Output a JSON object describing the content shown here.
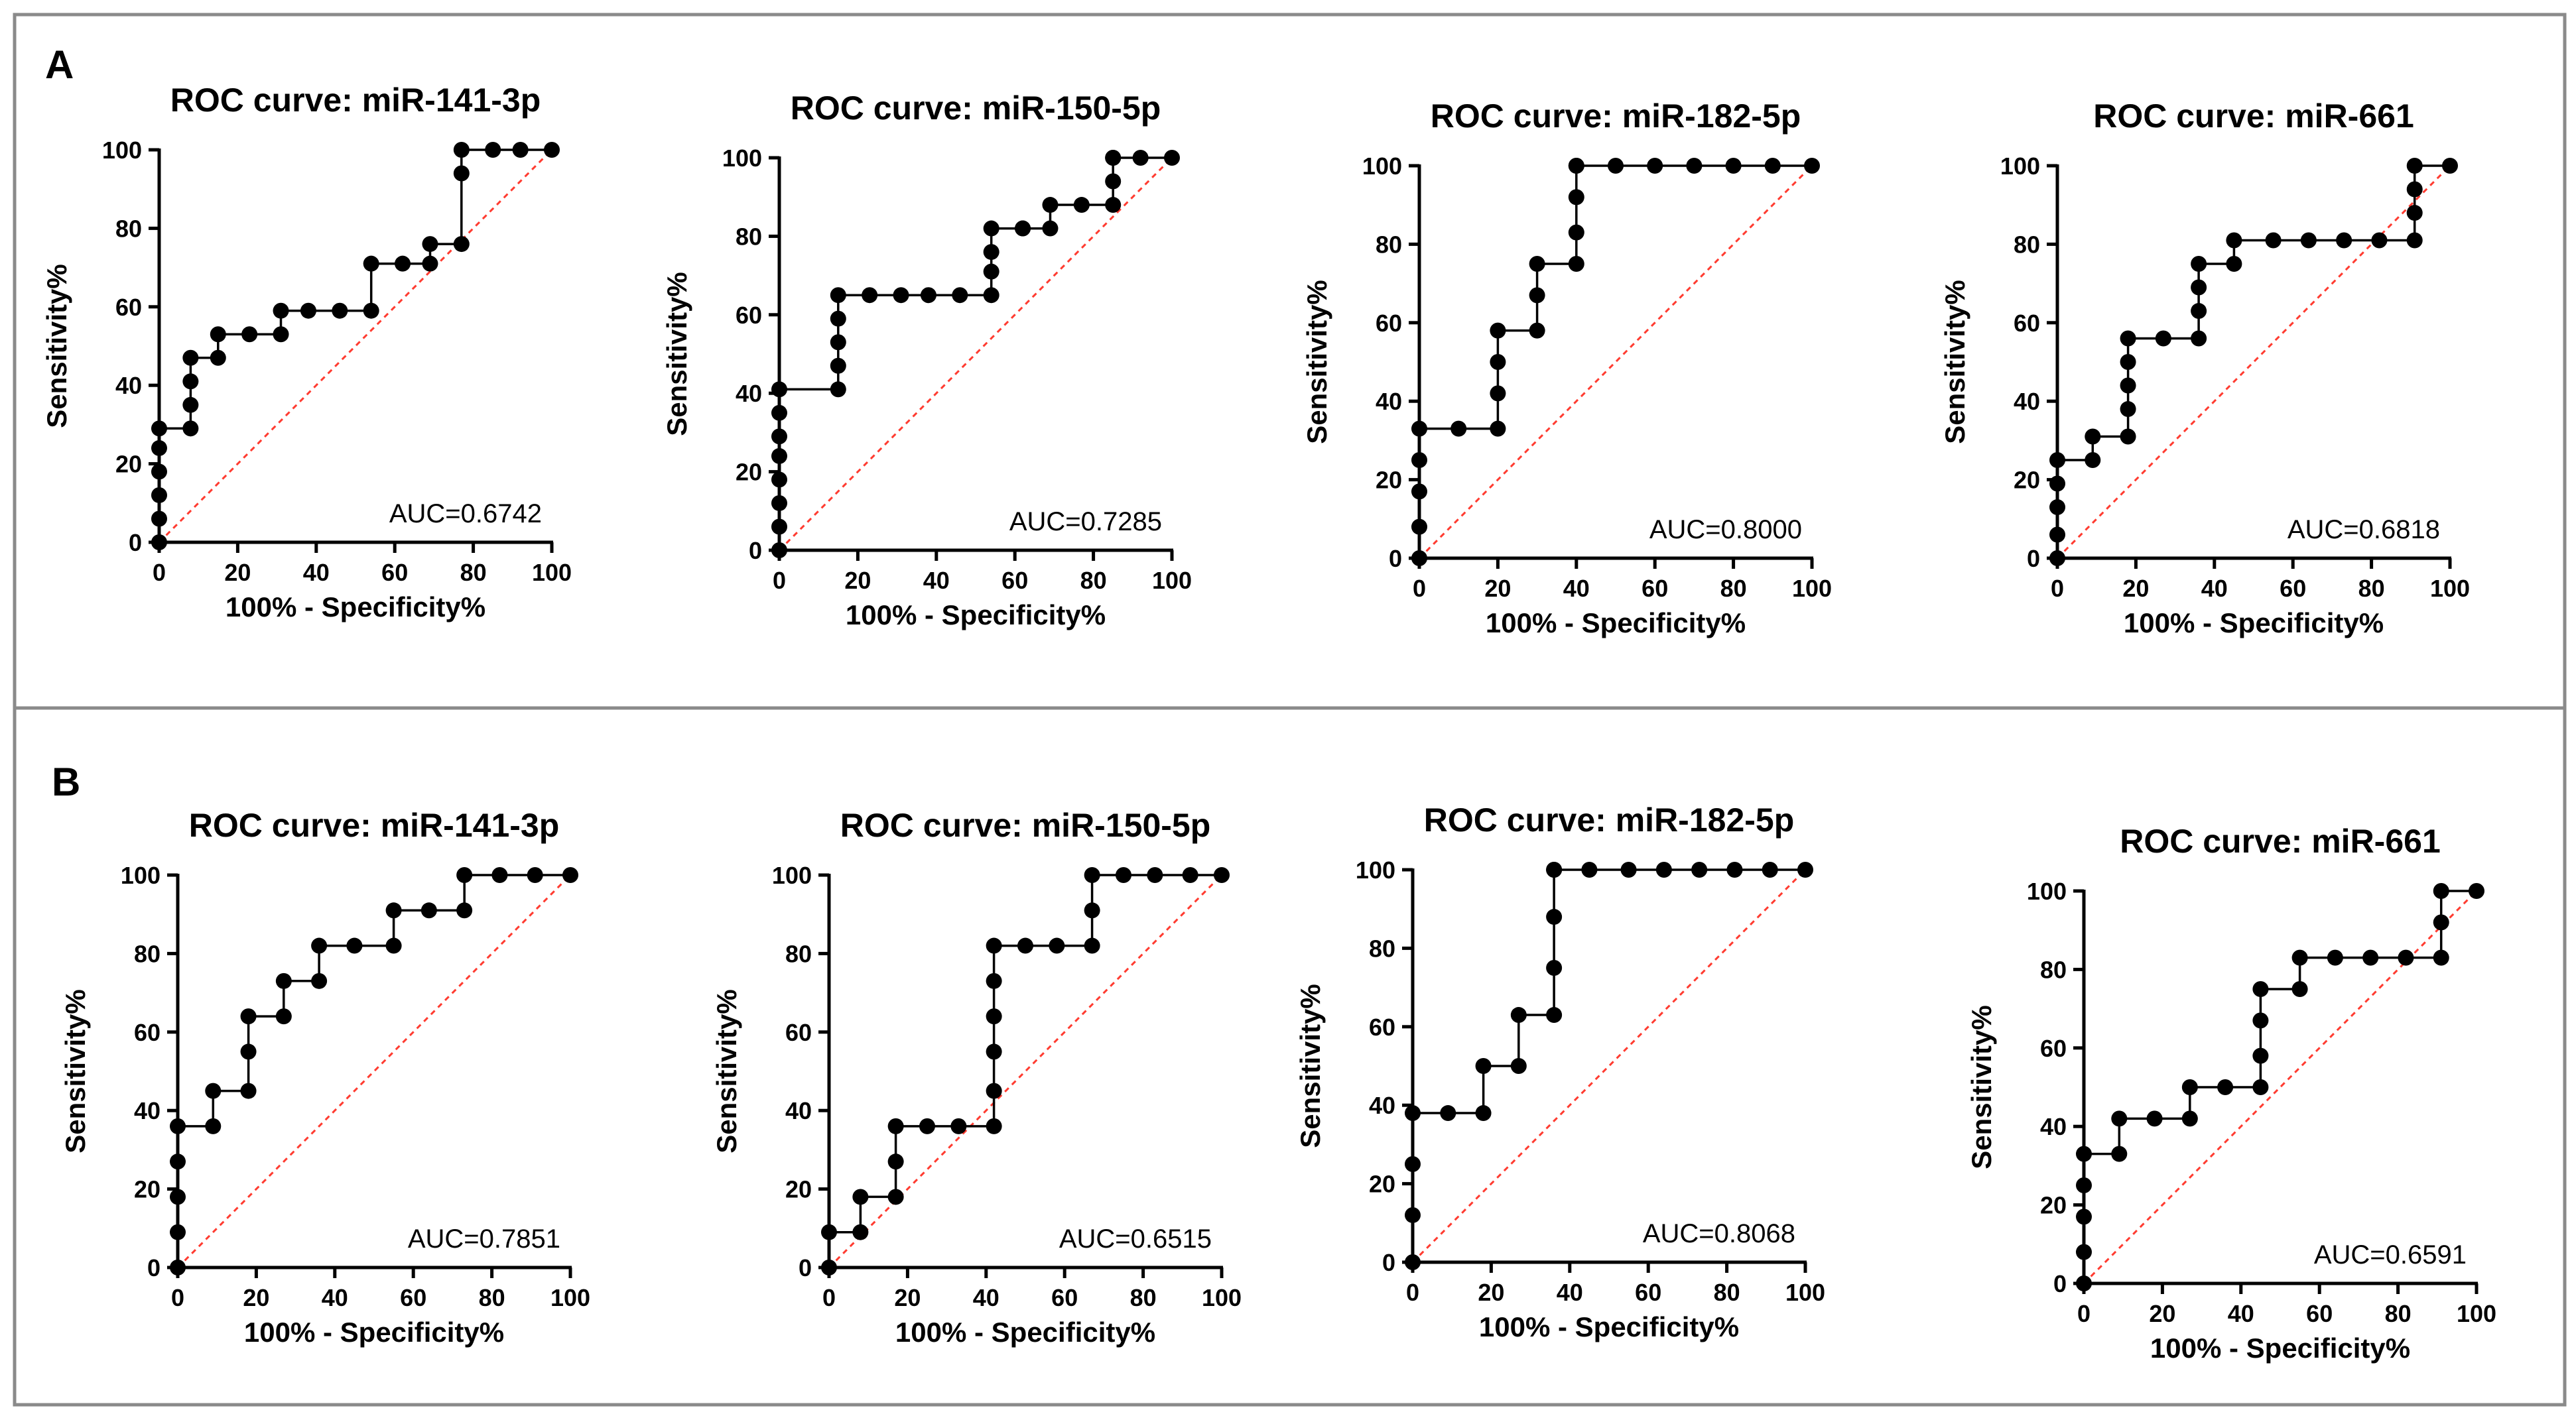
{
  "figure": {
    "panels": [
      {
        "letter": "A",
        "charts": [
          0,
          1,
          2,
          3
        ]
      },
      {
        "letter": "B",
        "charts": [
          4,
          5,
          6,
          7
        ]
      }
    ]
  },
  "chart_data": [
    {
      "type": "line",
      "panel": "A",
      "title": "ROC curve: miR-141-3p",
      "xlabel": "100% - Specificity%",
      "ylabel": "Sensitivity%",
      "xlim": [
        0,
        100
      ],
      "ylim": [
        0,
        100
      ],
      "xticks": [
        "0",
        "20",
        "40",
        "60",
        "80",
        "100"
      ],
      "yticks": [
        "0",
        "20",
        "40",
        "60",
        "80",
        "100"
      ],
      "auc_label": "AUC=0.6742",
      "series": [
        {
          "name": "ROC",
          "x": [
            0,
            0,
            0,
            0,
            0,
            0,
            8,
            8,
            8,
            8,
            15,
            15,
            23,
            31,
            31,
            38,
            46,
            54,
            54,
            62,
            69,
            69,
            77,
            77,
            77,
            85,
            92,
            100
          ],
          "y": [
            0,
            6,
            12,
            18,
            24,
            29,
            29,
            35,
            41,
            47,
            47,
            53,
            53,
            53,
            59,
            59,
            59,
            59,
            71,
            71,
            71,
            76,
            76,
            94,
            100,
            100,
            100,
            100
          ]
        }
      ],
      "reference_line": {
        "x": [
          0,
          100
        ],
        "y": [
          0,
          100
        ]
      }
    },
    {
      "type": "line",
      "panel": "A",
      "title": "ROC curve: miR-150-5p",
      "xlabel": "100% - Specificity%",
      "ylabel": "Sensitivity%",
      "xlim": [
        0,
        100
      ],
      "ylim": [
        0,
        100
      ],
      "xticks": [
        "0",
        "20",
        "40",
        "60",
        "80",
        "100"
      ],
      "yticks": [
        "0",
        "20",
        "40",
        "60",
        "80",
        "100"
      ],
      "auc_label": "AUC=0.7285",
      "series": [
        {
          "name": "ROC",
          "x": [
            0,
            0,
            0,
            0,
            0,
            0,
            0,
            0,
            15,
            15,
            15,
            15,
            15,
            23,
            31,
            38,
            46,
            54,
            54,
            54,
            54,
            62,
            62,
            69,
            69,
            77,
            85,
            85,
            85,
            85,
            92,
            100
          ],
          "y": [
            0,
            6,
            12,
            18,
            24,
            29,
            35,
            41,
            41,
            47,
            53,
            59,
            65,
            65,
            65,
            65,
            65,
            65,
            71,
            76,
            82,
            82,
            82,
            82,
            88,
            88,
            88,
            94,
            100,
            100,
            100,
            100
          ]
        }
      ],
      "reference_line": {
        "x": [
          0,
          100
        ],
        "y": [
          0,
          100
        ]
      }
    },
    {
      "type": "line",
      "panel": "A",
      "title": "ROC curve: miR-182-5p",
      "xlabel": "100% - Specificity%",
      "ylabel": "Sensitivity%",
      "xlim": [
        0,
        100
      ],
      "ylim": [
        0,
        100
      ],
      "xticks": [
        "0",
        "20",
        "40",
        "60",
        "80",
        "100"
      ],
      "yticks": [
        "0",
        "20",
        "40",
        "60",
        "80",
        "100"
      ],
      "auc_label": "AUC=0.8000",
      "series": [
        {
          "name": "ROC",
          "x": [
            0,
            0,
            0,
            0,
            0,
            10,
            20,
            20,
            20,
            20,
            30,
            30,
            30,
            40,
            40,
            40,
            40,
            40,
            50,
            60,
            70,
            80,
            90,
            100
          ],
          "y": [
            0,
            8,
            17,
            25,
            33,
            33,
            33,
            42,
            50,
            58,
            58,
            67,
            75,
            75,
            83,
            92,
            100,
            100,
            100,
            100,
            100,
            100,
            100,
            100
          ]
        }
      ],
      "reference_line": {
        "x": [
          0,
          100
        ],
        "y": [
          0,
          100
        ]
      }
    },
    {
      "type": "line",
      "panel": "A",
      "title": "ROC curve: miR-661",
      "xlabel": "100% - Specificity%",
      "ylabel": "Sensitivity%",
      "xlim": [
        0,
        100
      ],
      "ylim": [
        0,
        100
      ],
      "xticks": [
        "0",
        "20",
        "40",
        "60",
        "80",
        "100"
      ],
      "yticks": [
        "0",
        "20",
        "40",
        "60",
        "80",
        "100"
      ],
      "auc_label": "AUC=0.6818",
      "series": [
        {
          "name": "ROC",
          "x": [
            0,
            0,
            0,
            0,
            0,
            9,
            9,
            18,
            18,
            18,
            18,
            18,
            27,
            36,
            36,
            36,
            36,
            45,
            45,
            55,
            64,
            73,
            82,
            91,
            91,
            91,
            91,
            100
          ],
          "y": [
            0,
            6,
            13,
            19,
            25,
            25,
            31,
            31,
            38,
            44,
            50,
            56,
            56,
            56,
            63,
            69,
            75,
            75,
            81,
            81,
            81,
            81,
            81,
            81,
            88,
            94,
            100,
            100
          ]
        }
      ],
      "reference_line": {
        "x": [
          0,
          100
        ],
        "y": [
          0,
          100
        ]
      }
    },
    {
      "type": "line",
      "panel": "B",
      "title": "ROC curve: miR-141-3p",
      "xlabel": "100% - Specificity%",
      "ylabel": "Sensitivity%",
      "xlim": [
        0,
        100
      ],
      "ylim": [
        0,
        100
      ],
      "xticks": [
        "0",
        "20",
        "40",
        "60",
        "80",
        "100"
      ],
      "yticks": [
        "0",
        "20",
        "40",
        "60",
        "80",
        "100"
      ],
      "auc_label": "AUC=0.7851",
      "series": [
        {
          "name": "ROC",
          "x": [
            0,
            0,
            0,
            0,
            0,
            9,
            9,
            18,
            18,
            18,
            27,
            27,
            36,
            36,
            45,
            55,
            55,
            64,
            73,
            73,
            82,
            91,
            100
          ],
          "y": [
            0,
            9,
            18,
            27,
            36,
            36,
            45,
            45,
            55,
            64,
            64,
            73,
            73,
            82,
            82,
            82,
            91,
            91,
            91,
            100,
            100,
            100,
            100
          ]
        }
      ],
      "reference_line": {
        "x": [
          0,
          100
        ],
        "y": [
          0,
          100
        ]
      }
    },
    {
      "type": "line",
      "panel": "B",
      "title": "ROC curve: miR-150-5p",
      "xlabel": "100% - Specificity%",
      "ylabel": "Sensitivity%",
      "xlim": [
        0,
        100
      ],
      "ylim": [
        0,
        100
      ],
      "xticks": [
        "0",
        "20",
        "40",
        "60",
        "80",
        "100"
      ],
      "yticks": [
        "0",
        "20",
        "40",
        "60",
        "80",
        "100"
      ],
      "auc_label": "AUC=0.6515",
      "series": [
        {
          "name": "ROC",
          "x": [
            0,
            0,
            8,
            8,
            17,
            17,
            17,
            25,
            33,
            42,
            42,
            42,
            42,
            42,
            42,
            50,
            58,
            67,
            67,
            67,
            75,
            83,
            92,
            100
          ],
          "y": [
            0,
            9,
            9,
            18,
            18,
            27,
            36,
            36,
            36,
            36,
            45,
            55,
            64,
            73,
            82,
            82,
            82,
            82,
            91,
            100,
            100,
            100,
            100,
            100
          ]
        }
      ],
      "reference_line": {
        "x": [
          0,
          100
        ],
        "y": [
          0,
          100
        ]
      }
    },
    {
      "type": "line",
      "panel": "B",
      "title": "ROC curve: miR-182-5p",
      "xlabel": "100% - Specificity%",
      "ylabel": "Sensitivity%",
      "xlim": [
        0,
        100
      ],
      "ylim": [
        0,
        100
      ],
      "xticks": [
        "0",
        "20",
        "40",
        "60",
        "80",
        "100"
      ],
      "yticks": [
        "0",
        "20",
        "40",
        "60",
        "80",
        "100"
      ],
      "auc_label": "AUC=0.8068",
      "series": [
        {
          "name": "ROC",
          "x": [
            0,
            0,
            0,
            0,
            9,
            18,
            18,
            27,
            27,
            36,
            36,
            36,
            36,
            36,
            45,
            55,
            64,
            73,
            82,
            91,
            100
          ],
          "y": [
            0,
            12,
            25,
            38,
            38,
            38,
            50,
            50,
            63,
            63,
            75,
            88,
            100,
            100,
            100,
            100,
            100,
            100,
            100,
            100,
            100
          ]
        }
      ],
      "reference_line": {
        "x": [
          0,
          100
        ],
        "y": [
          0,
          100
        ]
      }
    },
    {
      "type": "line",
      "panel": "B",
      "title": "ROC curve: miR-661",
      "xlabel": "100% - Specificity%",
      "ylabel": "Sensitivity%",
      "xlim": [
        0,
        100
      ],
      "ylim": [
        0,
        100
      ],
      "xticks": [
        "0",
        "20",
        "40",
        "60",
        "80",
        "100"
      ],
      "yticks": [
        "0",
        "20",
        "40",
        "60",
        "80",
        "100"
      ],
      "auc_label": "AUC=0.6591",
      "series": [
        {
          "name": "ROC",
          "x": [
            0,
            0,
            0,
            0,
            0,
            9,
            9,
            18,
            27,
            27,
            36,
            45,
            45,
            45,
            45,
            55,
            55,
            64,
            73,
            82,
            91,
            91,
            91,
            100
          ],
          "y": [
            0,
            8,
            17,
            25,
            33,
            33,
            42,
            42,
            42,
            50,
            50,
            50,
            58,
            67,
            75,
            75,
            83,
            83,
            83,
            83,
            83,
            92,
            100,
            100
          ]
        }
      ],
      "reference_line": {
        "x": [
          0,
          100
        ],
        "y": [
          0,
          100
        ]
      }
    }
  ]
}
